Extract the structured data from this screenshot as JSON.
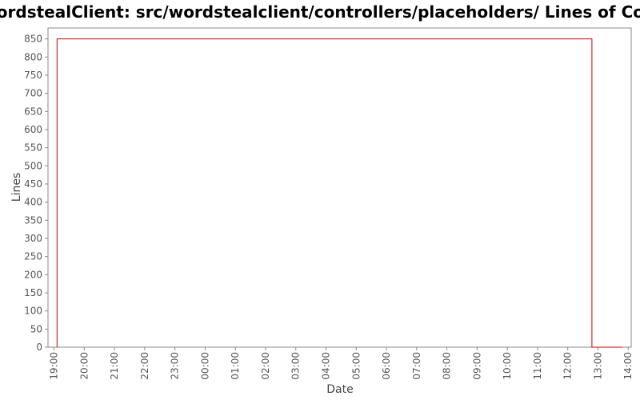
{
  "chart_data": {
    "type": "line",
    "title": "/WordstealClient: src/wordstealclient/controllers/placeholders/ Lines of Code",
    "xlabel": "Date",
    "ylabel": "Lines",
    "y_ticks": [
      "0",
      "50",
      "100",
      "150",
      "200",
      "250",
      "300",
      "350",
      "400",
      "450",
      "500",
      "550",
      "600",
      "650",
      "700",
      "750",
      "800",
      "850"
    ],
    "ylim": [
      0,
      880
    ],
    "x_ticks": [
      "19:00",
      "20:00",
      "21:00",
      "22:00",
      "23:00",
      "00:00",
      "01:00",
      "02:00",
      "03:00",
      "04:00",
      "05:00",
      "06:00",
      "07:00",
      "08:00",
      "09:00",
      "10:00",
      "11:00",
      "12:00",
      "13:00",
      "14:00"
    ],
    "xlim": [
      -0.2,
      19.1
    ],
    "line_color": "#cc0000",
    "series": [
      {
        "values": [
          {
            "x": 0.1,
            "y": 0
          },
          {
            "x": 0.1,
            "y": 850
          },
          {
            "x": 17.8,
            "y": 850
          },
          {
            "x": 17.8,
            "y": 0
          },
          {
            "x": 18.8,
            "y": 0
          }
        ]
      }
    ]
  }
}
